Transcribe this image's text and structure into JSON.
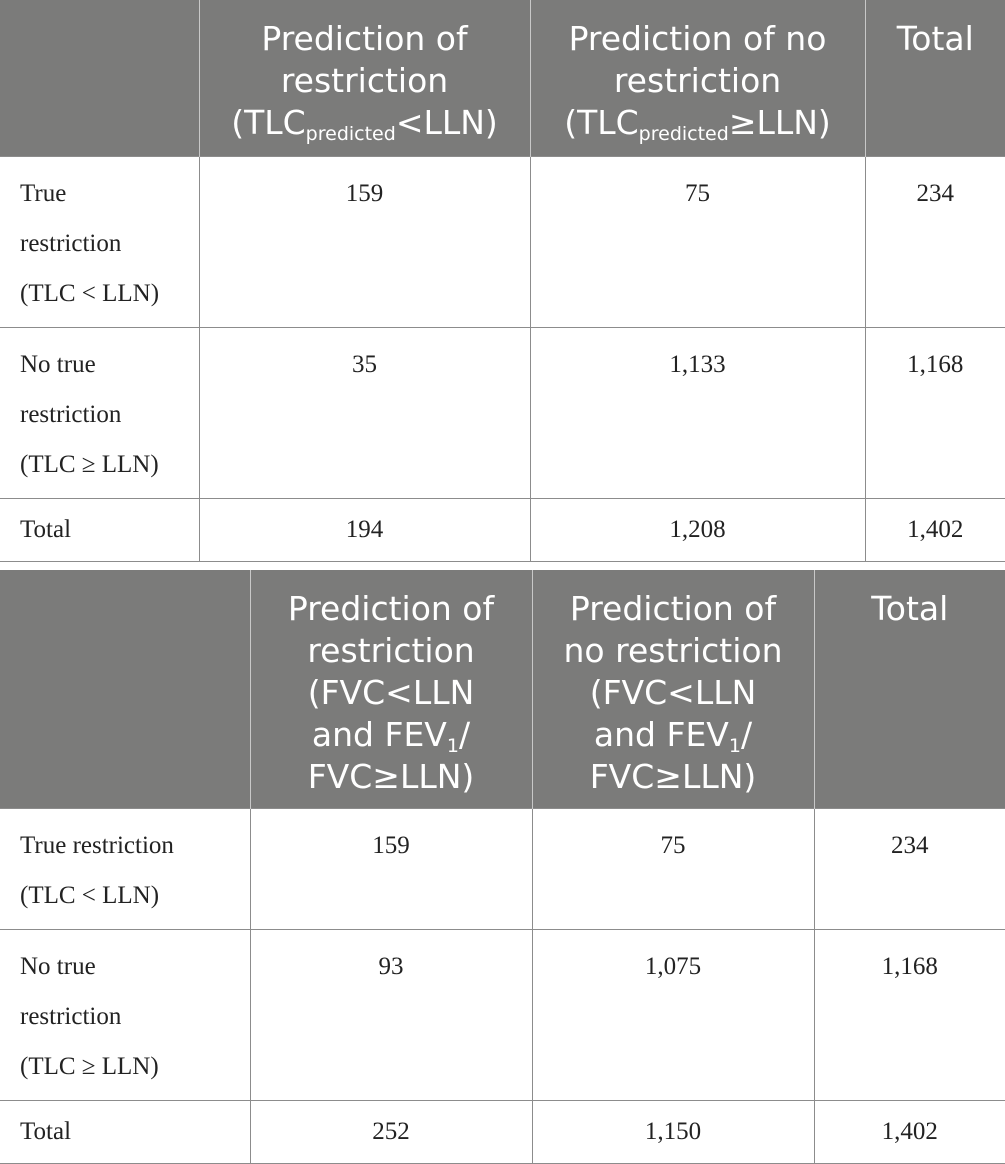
{
  "table1": {
    "header": {
      "corner": "",
      "col1_line1": "Prediction of",
      "col1_line2": "restriction",
      "col1_tlc": "(TLC",
      "col1_sub": "predicted",
      "col1_rel": "<LLN)",
      "col2_line1": "Prediction of no",
      "col2_line2": "restriction",
      "col2_tlc": "(TLC",
      "col2_sub": "predicted",
      "col2_rel": "≥LLN)",
      "col3": "Total"
    },
    "rows": [
      {
        "l1": "True",
        "l2": "restriction",
        "l3": "(TLC < LLN)",
        "c1": "159",
        "c2": "75",
        "c3": "234"
      },
      {
        "l1": "No true",
        "l2": "restriction",
        "l3": "(TLC ≥ LLN)",
        "c1": "35",
        "c2": "1,133",
        "c3": "1,168"
      },
      {
        "l1": "Total",
        "c1": "194",
        "c2": "1,208",
        "c3": "1,402"
      }
    ]
  },
  "table2": {
    "header": {
      "corner": "",
      "col1_line1": "Prediction of",
      "col1_line2": "restriction",
      "col1_line3": "(FVC<LLN",
      "col1_line4_pre": "and FEV",
      "col1_line4_sub": "1",
      "col1_line4_post": "/",
      "col1_line5": "FVC≥LLN)",
      "col2_line1": "Prediction of",
      "col2_line2": "no restriction",
      "col2_line3": "(FVC<LLN",
      "col2_line4_pre": "and FEV",
      "col2_line4_sub": "1",
      "col2_line4_post": "/",
      "col2_line5": "FVC≥LLN)",
      "col3": "Total"
    },
    "rows": [
      {
        "l1": "True restriction",
        "l2": "(TLC < LLN)",
        "c1": "159",
        "c2": "75",
        "c3": "234"
      },
      {
        "l1": "No true",
        "l2": "restriction",
        "l3": "(TLC ≥ LLN)",
        "c1": "93",
        "c2": "1,075",
        "c3": "1,168"
      },
      {
        "l1": "Total",
        "c1": "252",
        "c2": "1,150",
        "c3": "1,402"
      }
    ]
  }
}
